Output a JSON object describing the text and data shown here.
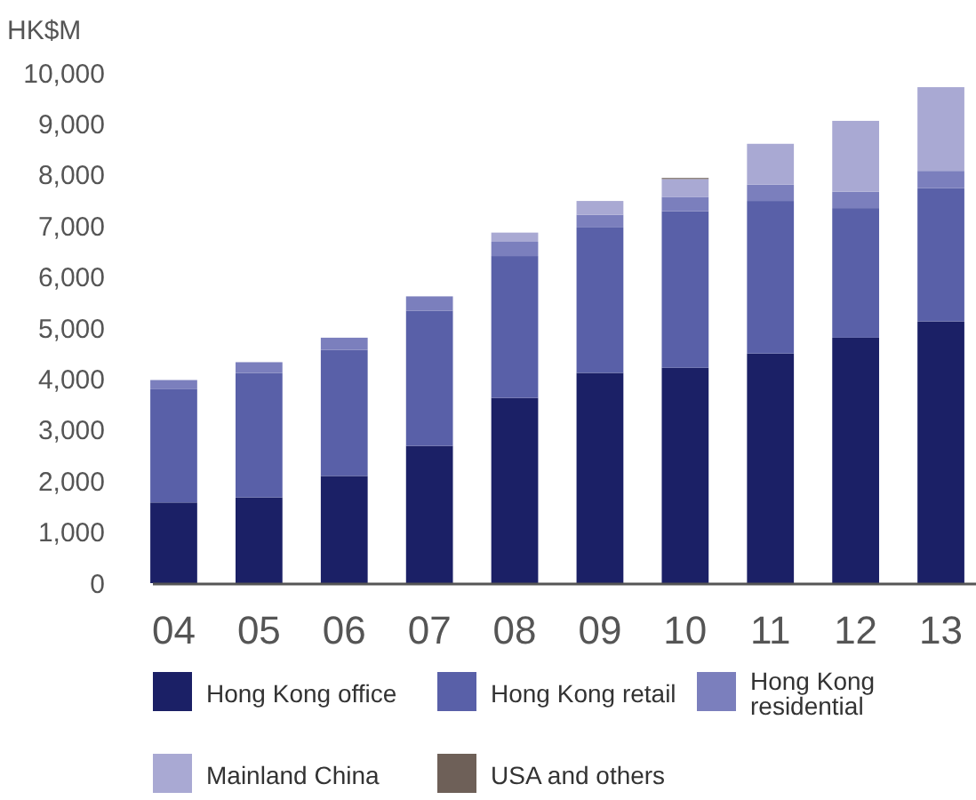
{
  "chart_data": {
    "type": "bar",
    "stacked": true,
    "ylabel": "HK$M",
    "categories": [
      "04",
      "05",
      "06",
      "07",
      "08",
      "09",
      "10",
      "11",
      "12",
      "13"
    ],
    "series": [
      {
        "name": "Hong Kong office",
        "color": "#1b2066",
        "values": [
          1580,
          1680,
          2100,
          2690,
          3630,
          4120,
          4220,
          4500,
          4810,
          5130
        ]
      },
      {
        "name": "Hong Kong retail",
        "color": "#5960a8",
        "values": [
          2220,
          2440,
          2470,
          2650,
          2780,
          2850,
          3070,
          2990,
          2540,
          2610
        ]
      },
      {
        "name": "Hong Kong residential",
        "color": "#7b7fbd",
        "values": [
          180,
          210,
          240,
          280,
          280,
          250,
          280,
          320,
          320,
          340
        ]
      },
      {
        "name": "Mainland China",
        "color": "#a9a9d3",
        "values": [
          null,
          0,
          0,
          0,
          180,
          270,
          350,
          800,
          1390,
          1640
        ]
      },
      {
        "name": "USA and others",
        "color": "#6e6058",
        "values": [
          0,
          0,
          0,
          0,
          0,
          0,
          20,
          0,
          0,
          0
        ]
      }
    ],
    "ylim": [
      0,
      10000
    ],
    "yticks": [
      {
        "value": 0,
        "label": "0"
      },
      {
        "value": 1000,
        "label": "1,000"
      },
      {
        "value": 2000,
        "label": "2,000"
      },
      {
        "value": 3000,
        "label": "3,000"
      },
      {
        "value": 4000,
        "label": "4,000"
      },
      {
        "value": 5000,
        "label": "5,000"
      },
      {
        "value": 6000,
        "label": "6,000"
      },
      {
        "value": 7000,
        "label": "7,000"
      },
      {
        "value": 8000,
        "label": "8,000"
      },
      {
        "value": 9000,
        "label": "9,000"
      },
      {
        "value": 10000,
        "label": "10,000"
      }
    ],
    "grid": false,
    "legend": "bottom"
  }
}
